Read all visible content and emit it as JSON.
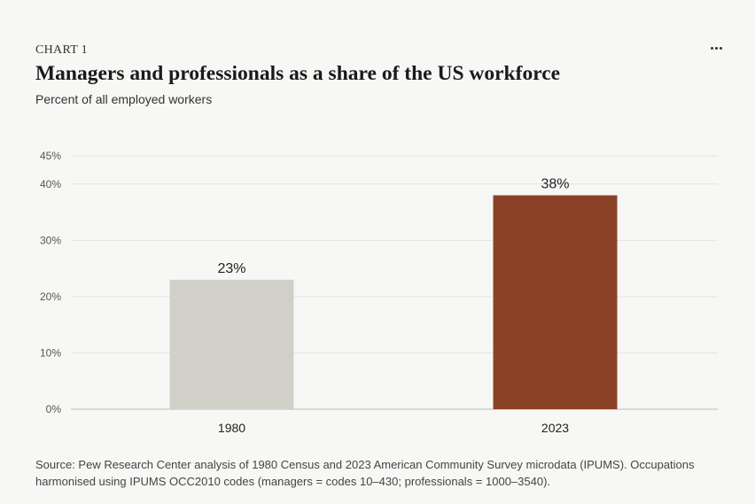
{
  "header": {
    "eyebrow": "CHART 1",
    "title": "Managers and professionals as a share of the US workforce",
    "subtitle": "Percent of all employed workers"
  },
  "menu": {
    "icon": "more-horizontal-icon"
  },
  "chart_data": {
    "type": "bar",
    "categories": [
      "1980",
      "2023"
    ],
    "values": [
      23,
      38
    ],
    "data_labels": [
      "23%",
      "38%"
    ],
    "bar_colors": [
      "#d1d0c8",
      "#8b4126"
    ],
    "ylim": [
      0,
      45
    ],
    "yticks": [
      0,
      10,
      20,
      30,
      40,
      45
    ],
    "ytick_labels": [
      "0%",
      "10%",
      "20%",
      "30%",
      "40%",
      "45%"
    ],
    "grid": true,
    "xlabel": "",
    "ylabel": ""
  },
  "footer": {
    "source": "Source: Pew Research Center analysis of 1980 Census and 2023 American Community Survey microdata (IPUMS). Occupations harmonised using IPUMS OCC2010 codes (managers = codes 10–430; professionals = 1000–3540)."
  }
}
